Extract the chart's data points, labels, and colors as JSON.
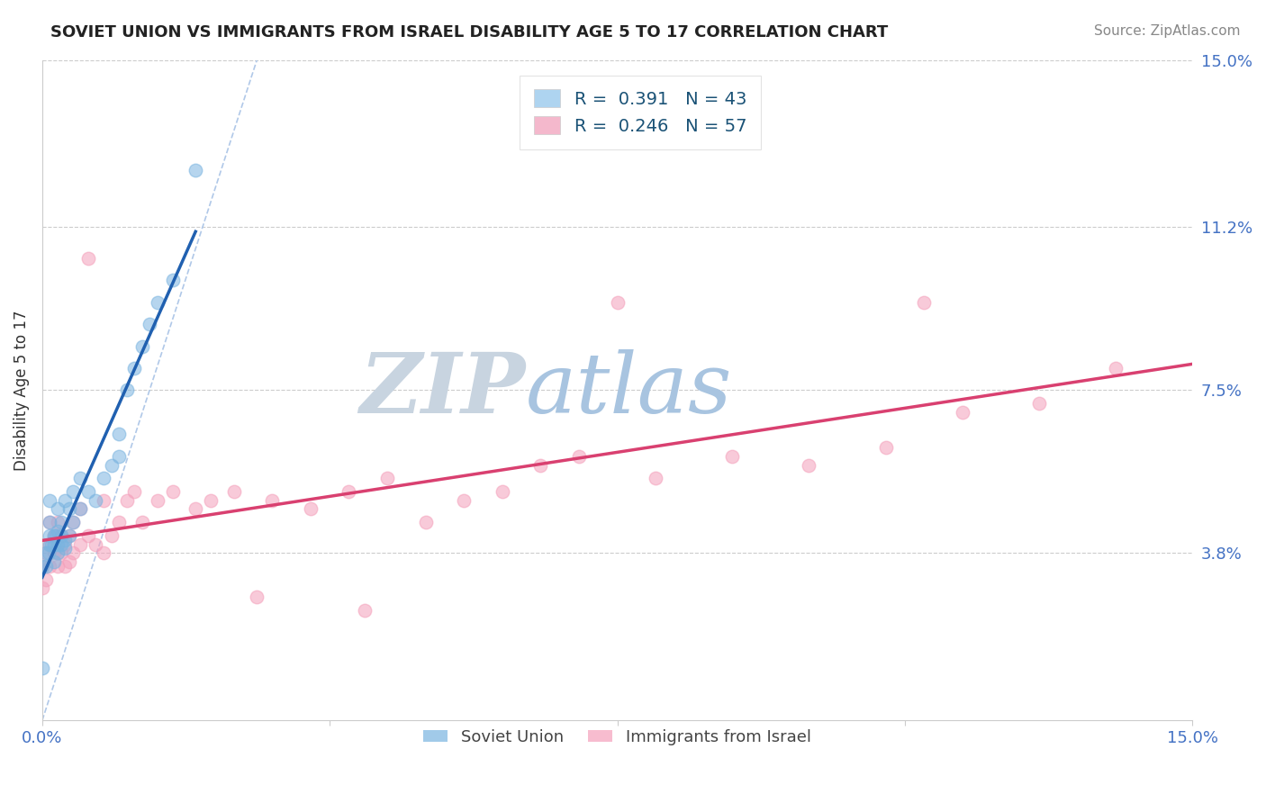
{
  "title": "SOVIET UNION VS IMMIGRANTS FROM ISRAEL DISABILITY AGE 5 TO 17 CORRELATION CHART",
  "source": "Source: ZipAtlas.com",
  "ylabel": "Disability Age 5 to 17",
  "xmin": 0.0,
  "xmax": 15.0,
  "ymin": 0.0,
  "ymax": 15.0,
  "ytick_labels": [
    "3.8%",
    "7.5%",
    "11.2%",
    "15.0%"
  ],
  "ytick_values": [
    3.8,
    7.5,
    11.2,
    15.0
  ],
  "xtick_positions": [
    0.0,
    3.75,
    7.5,
    11.25,
    15.0
  ],
  "xtick_labels_visible": [
    "0.0%",
    "",
    "",
    "",
    "15.0%"
  ],
  "series1_label": "Soviet Union",
  "series2_label": "Immigrants from Israel",
  "series1_color": "#7ab4e0",
  "series2_color": "#f4a0bb",
  "regression1_color": "#2060b0",
  "regression2_color": "#d94070",
  "diag_color": "#b0c8e8",
  "watermark_zip_color": "#c8d4e0",
  "watermark_atlas_color": "#a8c4e0",
  "background_color": "#ffffff",
  "legend_patch1_color": "#aed4f0",
  "legend_patch2_color": "#f4b8cc",
  "legend_text_color": "#1a5276",
  "legend_r1": "R =  0.391",
  "legend_n1": "N = 43",
  "legend_r2": "R =  0.246",
  "legend_n2": "N = 57",
  "series1_x": [
    0.0,
    0.0,
    0.05,
    0.1,
    0.1,
    0.1,
    0.1,
    0.15,
    0.15,
    0.15,
    0.2,
    0.2,
    0.2,
    0.2,
    0.25,
    0.25,
    0.25,
    0.3,
    0.3,
    0.3,
    0.35,
    0.35,
    0.4,
    0.4,
    0.5,
    0.5,
    0.6,
    0.7,
    0.8,
    0.9,
    1.0,
    1.0,
    1.1,
    1.2,
    1.3,
    1.4,
    1.5,
    1.7,
    2.0,
    0.05,
    0.08,
    0.12,
    0.18
  ],
  "series1_y": [
    1.2,
    3.5,
    3.8,
    4.0,
    4.2,
    4.5,
    5.0,
    3.6,
    4.0,
    4.2,
    3.8,
    4.0,
    4.3,
    4.8,
    4.0,
    4.2,
    4.5,
    3.9,
    4.1,
    5.0,
    4.2,
    4.8,
    4.5,
    5.2,
    4.8,
    5.5,
    5.2,
    5.0,
    5.5,
    5.8,
    6.0,
    6.5,
    7.5,
    8.0,
    8.5,
    9.0,
    9.5,
    10.0,
    12.5,
    3.5,
    3.8,
    4.0,
    4.2
  ],
  "series2_x": [
    0.0,
    0.0,
    0.05,
    0.05,
    0.1,
    0.1,
    0.1,
    0.15,
    0.15,
    0.2,
    0.2,
    0.2,
    0.25,
    0.25,
    0.3,
    0.3,
    0.35,
    0.35,
    0.4,
    0.4,
    0.5,
    0.5,
    0.6,
    0.7,
    0.8,
    0.9,
    1.0,
    1.1,
    1.2,
    1.5,
    1.7,
    2.0,
    2.2,
    2.5,
    3.0,
    3.5,
    4.0,
    4.5,
    5.0,
    5.5,
    6.0,
    6.5,
    7.0,
    8.0,
    9.0,
    10.0,
    11.0,
    11.5,
    12.0,
    13.0,
    14.0,
    0.6,
    0.8,
    1.3,
    2.8,
    4.2,
    7.5
  ],
  "series2_y": [
    3.0,
    3.5,
    3.2,
    3.8,
    3.5,
    4.0,
    4.5,
    3.8,
    4.2,
    3.5,
    3.8,
    4.5,
    3.8,
    4.2,
    3.5,
    4.0,
    3.6,
    4.2,
    3.8,
    4.5,
    4.0,
    4.8,
    4.2,
    4.0,
    3.8,
    4.2,
    4.5,
    5.0,
    5.2,
    5.0,
    5.2,
    4.8,
    5.0,
    5.2,
    5.0,
    4.8,
    5.2,
    5.5,
    4.5,
    5.0,
    5.2,
    5.8,
    6.0,
    5.5,
    6.0,
    5.8,
    6.2,
    9.5,
    7.0,
    7.2,
    8.0,
    10.5,
    5.0,
    4.5,
    2.8,
    2.5,
    9.5
  ]
}
